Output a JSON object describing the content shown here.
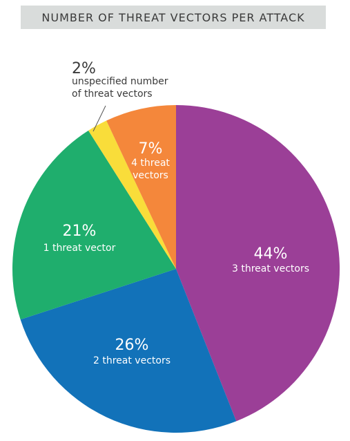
{
  "chart_data": {
    "type": "pie",
    "title": "NUMBER OF THREAT VECTORS PER ATTACK",
    "slices": [
      {
        "value": 44,
        "pct_label": "44%",
        "label": "3 threat vectors",
        "color": "#9b3f97"
      },
      {
        "value": 26,
        "pct_label": "26%",
        "label": "2 threat vectors",
        "color": "#1272b9"
      },
      {
        "value": 21,
        "pct_label": "21%",
        "label": "1 threat vector",
        "color": "#1fae6d"
      },
      {
        "value": 2,
        "pct_label": "2%",
        "label": "unspecified number of threat vectors",
        "label_lines": [
          "unspecified number",
          "of threat vectors"
        ],
        "color": "#f9dd3a"
      },
      {
        "value": 7,
        "pct_label": "7%",
        "label": "4 threat vectors",
        "label_lines": [
          "4 threat",
          "vectors"
        ],
        "color": "#f4873b"
      }
    ]
  }
}
